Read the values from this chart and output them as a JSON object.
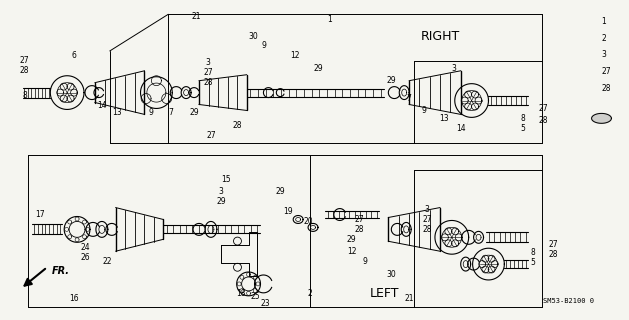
{
  "bg_color": "#f5f5f0",
  "text_color": "#000000",
  "right_label": "RIGHT",
  "left_label": "LEFT",
  "fr_label": "FR.",
  "part_number": "SM53-B2100 0",
  "legend_numbers": [
    "1",
    "2",
    "3",
    "27",
    "28"
  ],
  "fs_label": 6.5,
  "fs_small": 5.5
}
